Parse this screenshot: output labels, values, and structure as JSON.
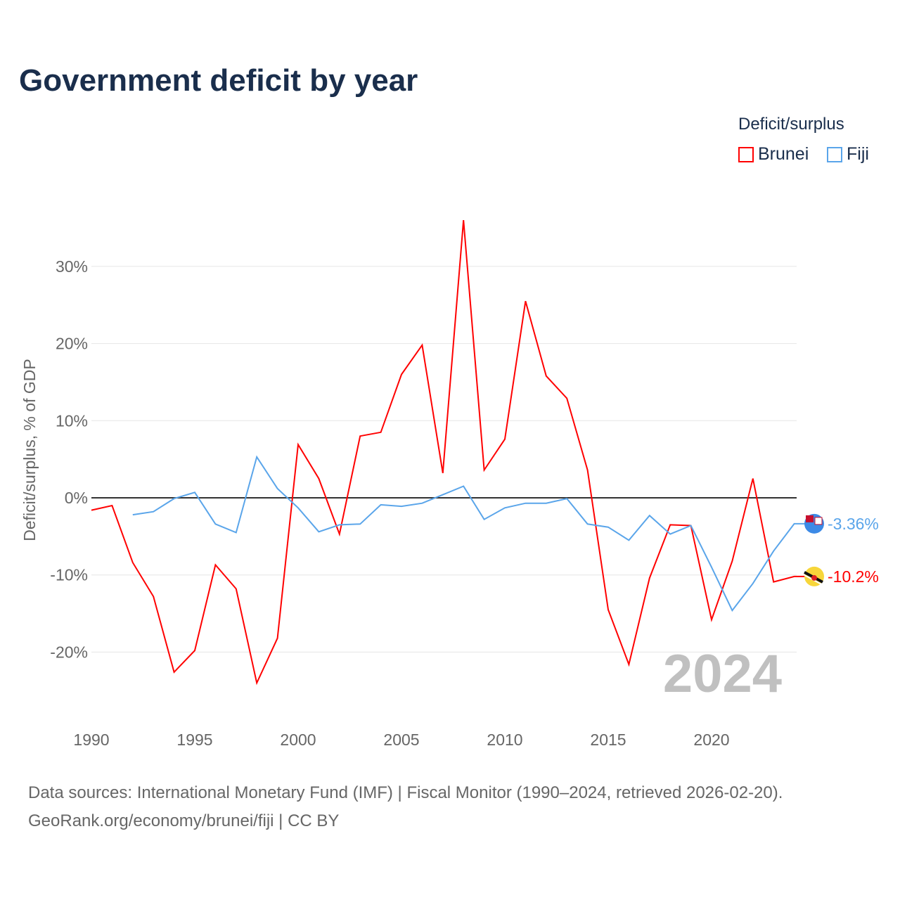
{
  "title": "Government deficit by year",
  "legend": {
    "title": "Deficit/surplus",
    "items": [
      {
        "name": "Brunei",
        "color": "#ff0000"
      },
      {
        "name": "Fiji",
        "color": "#5aa5ea"
      }
    ]
  },
  "footer": {
    "line1": "Data sources: International Monetary Fund (IMF) | Fiscal Monitor (1990–2024, retrieved 2026-02-20).",
    "line2": "GeoRank.org/economy/brunei/fiji | CC BY"
  },
  "chart_data": {
    "type": "line",
    "title": "Government deficit by year",
    "xlabel": "",
    "ylabel": "Deficit/surplus, % of GDP",
    "xlim": [
      1990,
      2024
    ],
    "ylim": [
      -27,
      37
    ],
    "xticks": [
      1990,
      1995,
      2000,
      2005,
      2010,
      2015,
      2020
    ],
    "yticks": [
      -20,
      -10,
      0,
      10,
      20,
      30
    ],
    "ytick_labels": [
      "-20%",
      "-10%",
      "0%",
      "10%",
      "20%",
      "30%"
    ],
    "grid": true,
    "year_watermark": "2024",
    "series": [
      {
        "name": "Brunei",
        "color": "#ff0000",
        "end_label": "-10.2%",
        "x": [
          1990,
          1991,
          1992,
          1993,
          1994,
          1995,
          1996,
          1997,
          1998,
          1999,
          2000,
          2001,
          2002,
          2003,
          2004,
          2005,
          2006,
          2007,
          2008,
          2009,
          2010,
          2011,
          2012,
          2013,
          2014,
          2015,
          2016,
          2017,
          2018,
          2019,
          2020,
          2021,
          2022,
          2023,
          2024
        ],
        "values": [
          -1.6,
          -1.0,
          -8.4,
          -12.8,
          -22.6,
          -19.8,
          -8.7,
          -11.8,
          -24.0,
          -18.2,
          6.9,
          2.5,
          -4.7,
          8.0,
          8.5,
          16.0,
          19.8,
          3.2,
          36.0,
          3.6,
          7.6,
          25.5,
          15.8,
          12.9,
          3.6,
          -14.5,
          -21.6,
          -10.4,
          -3.5,
          -3.6,
          -15.8,
          -8.2,
          2.5,
          -10.9,
          -10.2
        ]
      },
      {
        "name": "Fiji",
        "color": "#5aa5ea",
        "end_label": "-3.36%",
        "x": [
          1992,
          1993,
          1994,
          1995,
          1996,
          1997,
          1998,
          1999,
          2000,
          2001,
          2002,
          2003,
          2004,
          2005,
          2006,
          2007,
          2008,
          2009,
          2010,
          2011,
          2012,
          2013,
          2014,
          2015,
          2016,
          2017,
          2018,
          2019,
          2020,
          2021,
          2022,
          2023,
          2024
        ],
        "values": [
          -2.2,
          -1.8,
          -0.1,
          0.7,
          -3.4,
          -4.5,
          5.3,
          1.2,
          -1.3,
          -4.4,
          -3.5,
          -3.4,
          -0.9,
          -1.1,
          -0.7,
          0.4,
          1.5,
          -2.8,
          -1.3,
          -0.7,
          -0.7,
          -0.1,
          -3.4,
          -3.8,
          -5.5,
          -2.3,
          -4.7,
          -3.6,
          -9.0,
          -14.6,
          -11.1,
          -6.9,
          -3.36
        ]
      }
    ]
  }
}
